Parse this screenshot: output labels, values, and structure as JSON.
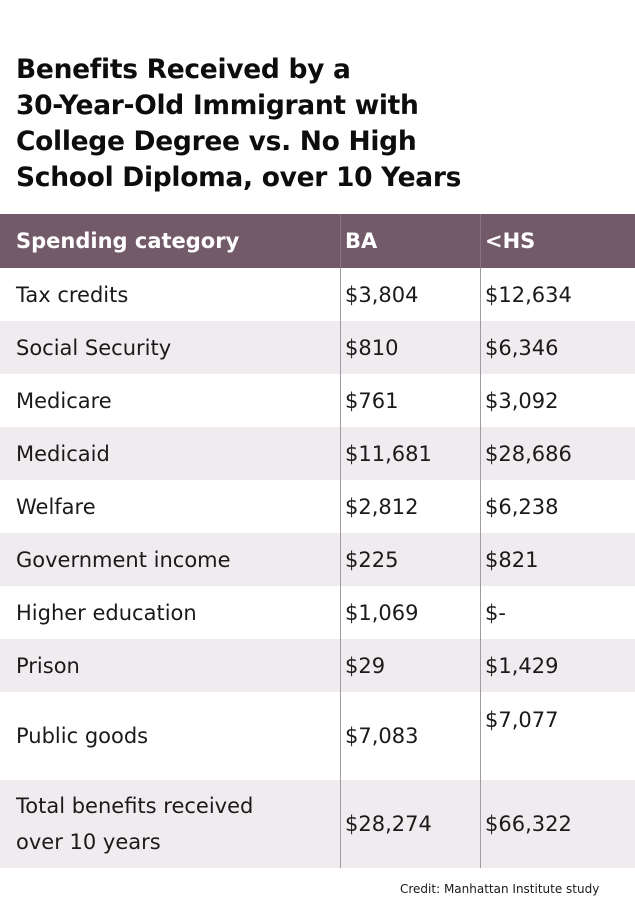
{
  "title": "Benefits Received by a\n30-Year-Old Immigrant with\nCollege Degree vs. No High\nSchool Diploma, over 10 Years",
  "table": {
    "headers": [
      "Spending category",
      "BA",
      "<HS"
    ],
    "rows": [
      {
        "category": "Tax credits",
        "ba": "$3,804",
        "hs": "$12,634"
      },
      {
        "category": "Social Security",
        "ba": "$810",
        "hs": "$6,346"
      },
      {
        "category": "Medicare",
        "ba": "$761",
        "hs": "$3,092"
      },
      {
        "category": "Medicaid",
        "ba": "$11,681",
        "hs": "$28,686"
      },
      {
        "category": "Welfare",
        "ba": "$2,812",
        "hs": "$6,238"
      },
      {
        "category": "Government income",
        "ba": "$225",
        "hs": "$821"
      },
      {
        "category": "Higher education",
        "ba": "$1,069",
        "hs": "$-"
      },
      {
        "category": "Prison",
        "ba": "$29",
        "hs": "$1,429"
      },
      {
        "category": "Public goods",
        "ba": "$7,083",
        "hs": "$7,077"
      },
      {
        "category": "Total benefits received\nover 10 years",
        "ba": "$28,274",
        "hs": "$66,322"
      }
    ]
  },
  "credit": "Credit: Manhattan Institute study",
  "colors": {
    "header_bg": "#735a69",
    "stripe": "#efebef",
    "header_text": "#ffffff"
  },
  "chart_data": {
    "type": "table",
    "title": "Benefits Received by a 30-Year-Old Immigrant with College Degree vs. No High School Diploma, over 10 Years",
    "columns": [
      "Spending category",
      "BA",
      "<HS"
    ],
    "categories": [
      "Tax credits",
      "Social Security",
      "Medicare",
      "Medicaid",
      "Welfare",
      "Government income",
      "Higher education",
      "Prison",
      "Public goods",
      "Total benefits received over 10 years"
    ],
    "series": [
      {
        "name": "BA",
        "values": [
          3804,
          810,
          761,
          11681,
          2812,
          225,
          1069,
          29,
          7083,
          28274
        ]
      },
      {
        "name": "<HS",
        "values": [
          12634,
          6346,
          3092,
          28686,
          6238,
          821,
          0,
          1429,
          7077,
          66322
        ]
      }
    ],
    "units": "USD",
    "source": "Credit: Manhattan Institute study"
  }
}
